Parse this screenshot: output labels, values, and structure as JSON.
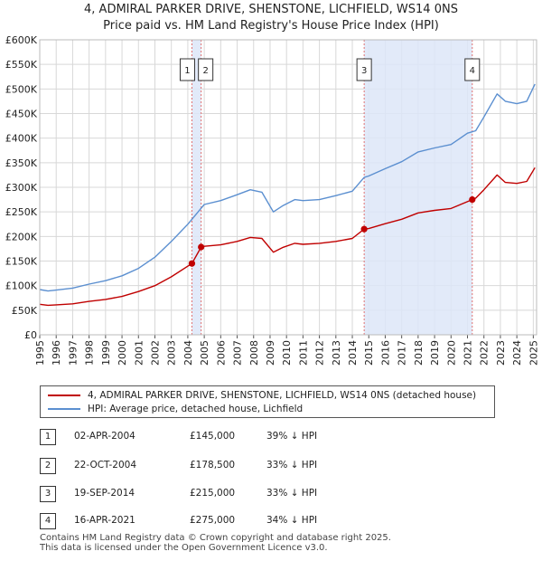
{
  "title_line1": "4, ADMIRAL PARKER DRIVE, SHENSTONE, LICHFIELD, WS14 0NS",
  "title_line2": "Price paid vs. HM Land Registry's House Price Index (HPI)",
  "legend": {
    "property": "4, ADMIRAL PARKER DRIVE, SHENSTONE, LICHFIELD, WS14 0NS (detached house)",
    "hpi": "HPI: Average price, detached house, Lichfield"
  },
  "colors": {
    "property": "#c00000",
    "hpi": "#5b8fd0",
    "shade": "#dde6f8",
    "vline": "#e07070"
  },
  "transactions": [
    {
      "num": "1",
      "date": "02-APR-2004",
      "price": "£145,000",
      "hpi_diff": "39% ↓ HPI"
    },
    {
      "num": "2",
      "date": "22-OCT-2004",
      "price": "£178,500",
      "hpi_diff": "33% ↓ HPI"
    },
    {
      "num": "3",
      "date": "19-SEP-2014",
      "price": "£215,000",
      "hpi_diff": "33% ↓ HPI"
    },
    {
      "num": "4",
      "date": "16-APR-2021",
      "price": "£275,000",
      "hpi_diff": "34% ↓ HPI"
    }
  ],
  "footer_line1": "Contains HM Land Registry data © Crown copyright and database right 2025.",
  "footer_line2": "This data is licensed under the Open Government Licence v3.0.",
  "chart_data": {
    "type": "line",
    "title": "4, ADMIRAL PARKER DRIVE, SHENSTONE, LICHFIELD, WS14 0NS",
    "subtitle": "Price paid vs. HM Land Registry's House Price Index (HPI)",
    "xlim": [
      1995,
      2025.2
    ],
    "ylim": [
      0,
      600000
    ],
    "x_ticks": [
      "1995",
      "1996",
      "1997",
      "1998",
      "1999",
      "2000",
      "2001",
      "2002",
      "2003",
      "2004",
      "2005",
      "2006",
      "2007",
      "2008",
      "2009",
      "2010",
      "2011",
      "2012",
      "2013",
      "2014",
      "2015",
      "2016",
      "2017",
      "2018",
      "2019",
      "2020",
      "2021",
      "2022",
      "2023",
      "2024",
      "2025"
    ],
    "y_ticks": [
      {
        "value": 0,
        "label": "£0"
      },
      {
        "value": 50000,
        "label": "£50K"
      },
      {
        "value": 100000,
        "label": "£100K"
      },
      {
        "value": 150000,
        "label": "£150K"
      },
      {
        "value": 200000,
        "label": "£200K"
      },
      {
        "value": 250000,
        "label": "£250K"
      },
      {
        "value": 300000,
        "label": "£300K"
      },
      {
        "value": 350000,
        "label": "£350K"
      },
      {
        "value": 400000,
        "label": "£400K"
      },
      {
        "value": 450000,
        "label": "£450K"
      },
      {
        "value": 500000,
        "label": "£500K"
      },
      {
        "value": 550000,
        "label": "£550K"
      },
      {
        "value": 600000,
        "label": "£600K"
      }
    ],
    "grid": true,
    "shaded_ranges": [
      [
        2004.25,
        2004.81
      ],
      [
        2014.72,
        2021.29
      ]
    ],
    "sales": [
      {
        "label": "1",
        "x": 2004.25,
        "y": 145000
      },
      {
        "label": "2",
        "x": 2004.81,
        "y": 178500
      },
      {
        "label": "3",
        "x": 2014.72,
        "y": 215000
      },
      {
        "label": "4",
        "x": 2021.29,
        "y": 275000
      }
    ],
    "series": [
      {
        "name": "4, ADMIRAL PARKER DRIVE, SHENSTONE, LICHFIELD, WS14 0NS (detached house)",
        "x": [
          1995,
          1995.5,
          1996,
          1997,
          1998,
          1999,
          2000,
          2001,
          2002,
          2003,
          2004.25,
          2004.81,
          2005,
          2006,
          2007,
          2007.8,
          2008.5,
          2009.2,
          2009.8,
          2010.5,
          2011,
          2012,
          2013,
          2014,
          2014.72,
          2015,
          2016,
          2017,
          2018,
          2019,
          2020,
          2021.29,
          2021.5,
          2022,
          2022.8,
          2023.3,
          2024,
          2024.6,
          2025.1
        ],
        "values": [
          62000,
          60000,
          61000,
          63000,
          68000,
          72000,
          78000,
          88000,
          100000,
          118000,
          145000,
          178500,
          180000,
          183000,
          190000,
          198000,
          196000,
          168000,
          178000,
          186000,
          184000,
          186000,
          190000,
          196000,
          215000,
          216000,
          226000,
          235000,
          248000,
          253000,
          257000,
          275000,
          278000,
          295000,
          325000,
          310000,
          308000,
          312000,
          340000
        ]
      },
      {
        "name": "HPI: Average price, detached house, Lichfield",
        "x": [
          1995,
          1995.5,
          1996,
          1997,
          1998,
          1999,
          2000,
          2001,
          2002,
          2003,
          2004,
          2004.5,
          2005,
          2006,
          2007,
          2007.8,
          2008.5,
          2009.2,
          2009.8,
          2010.5,
          2011,
          2012,
          2013,
          2014,
          2014.72,
          2015,
          2016,
          2017,
          2018,
          2019,
          2020,
          2021,
          2021.5,
          2022,
          2022.8,
          2023.3,
          2024,
          2024.6,
          2025.1
        ],
        "values": [
          92000,
          89000,
          91000,
          95000,
          103000,
          110000,
          120000,
          135000,
          158000,
          190000,
          225000,
          245000,
          265000,
          273000,
          285000,
          295000,
          290000,
          250000,
          263000,
          275000,
          273000,
          275000,
          283000,
          292000,
          320000,
          323000,
          338000,
          352000,
          372000,
          380000,
          387000,
          410000,
          415000,
          443000,
          490000,
          475000,
          470000,
          475000,
          510000
        ]
      }
    ]
  }
}
